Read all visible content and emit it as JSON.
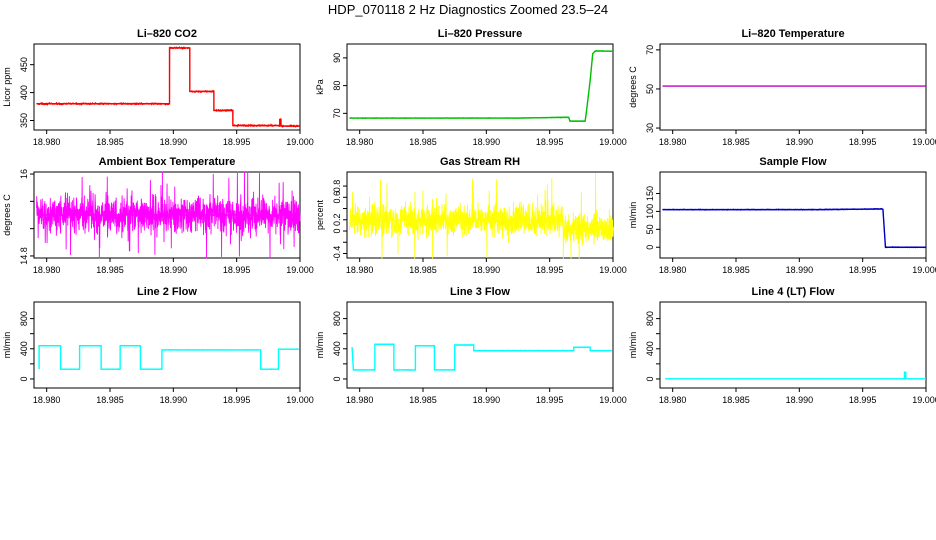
{
  "figure": {
    "title": "HDP_070118  2 Hz Diagnostics Zoomed 23.5–24"
  },
  "chart_data": [
    {
      "type": "line",
      "title": "Li–820 CO2",
      "ylabel": "Licor ppm",
      "color": "#ff0000",
      "xlim": [
        18.979,
        19.0
      ],
      "ylim": [
        333,
        487
      ],
      "xticks": [
        18.98,
        18.985,
        18.99,
        18.995,
        19.0
      ],
      "xtick_labels": [
        "18.980",
        "18.985",
        "18.990",
        "18.995",
        "19.000"
      ],
      "yticks": [
        350,
        400,
        450
      ],
      "series": [
        {
          "x": [
            18.9792,
            18.9897,
            18.9897,
            18.9913,
            18.9913,
            18.9932,
            18.9932,
            18.9947,
            18.9947,
            18.9984,
            18.9984,
            18.9985,
            18.9985,
            19.0
          ],
          "y": [
            380,
            380,
            480,
            480,
            402,
            402,
            368,
            368,
            341,
            341,
            352,
            352,
            340,
            340
          ],
          "noise": 1.5
        }
      ]
    },
    {
      "type": "line",
      "title": "Li–820 Pressure",
      "ylabel": "kPa",
      "color": "#00c000",
      "xlim": [
        18.979,
        19.0
      ],
      "ylim": [
        64,
        95
      ],
      "xticks": [
        18.98,
        18.985,
        18.99,
        18.995,
        19.0
      ],
      "xtick_labels": [
        "18.980",
        "18.985",
        "18.990",
        "18.995",
        "19.000"
      ],
      "yticks": [
        70,
        80,
        90
      ],
      "series": [
        {
          "x": [
            18.9792,
            18.9925,
            18.9965,
            18.9966,
            18.9978,
            18.9979,
            18.9982,
            18.9984,
            18.9986,
            19.0
          ],
          "y": [
            68.3,
            68.3,
            68.6,
            67.2,
            67.2,
            70.5,
            82,
            91.5,
            92.5,
            92.4
          ],
          "noise": 0.12
        }
      ]
    },
    {
      "type": "line",
      "title": "Li–820 Temperature",
      "ylabel": "degrees C",
      "color": "#c000c0",
      "xlim": [
        18.979,
        19.0
      ],
      "ylim": [
        29,
        73
      ],
      "xticks": [
        18.98,
        18.985,
        18.99,
        18.995,
        19.0
      ],
      "xtick_labels": [
        "18.980",
        "18.985",
        "18.990",
        "18.995",
        "19.000"
      ],
      "yticks": [
        30,
        50,
        70
      ],
      "series": [
        {
          "x": [
            18.9792,
            19.0
          ],
          "y": [
            51.5,
            51.5
          ],
          "noise": 0
        }
      ]
    },
    {
      "type": "line",
      "title": "Ambient Box Temperature",
      "ylabel": "degrees C",
      "color": "#ff00ff",
      "xlim": [
        18.979,
        19.0
      ],
      "ylim": [
        14.77,
        16.03
      ],
      "xticks": [
        18.98,
        18.985,
        18.99,
        18.995,
        19.0
      ],
      "xtick_labels": [
        "18.980",
        "18.985",
        "18.990",
        "18.995",
        "19.000"
      ],
      "yticks": [
        14.8,
        15.2,
        15.6,
        16.0
      ],
      "yticks_shown": [
        14.8,
        15.4,
        16.0
      ],
      "series": [
        {
          "x": [
            18.9792,
            19.0
          ],
          "y": [
            15.4,
            15.4
          ],
          "noise": 0.22,
          "spikes": 0.6
        }
      ]
    },
    {
      "type": "line",
      "title": "Gas Stream RH",
      "ylabel": "percent",
      "color": "#ffff00",
      "xlim": [
        18.979,
        19.0
      ],
      "ylim": [
        -0.48,
        1.05
      ],
      "xticks": [
        18.98,
        18.985,
        18.99,
        18.995,
        19.0
      ],
      "xtick_labels": [
        "18.980",
        "18.985",
        "18.990",
        "18.995",
        "19.000"
      ],
      "yticks": [
        -0.4,
        -0.2,
        0.0,
        0.2,
        0.4,
        0.6,
        0.8
      ],
      "yticks_shown": [
        -0.4,
        0.0,
        0.2,
        0.6,
        0.8
      ],
      "series": [
        {
          "x": [
            18.9792,
            18.996,
            18.9961,
            19.0
          ],
          "y": [
            0.2,
            0.2,
            0.05,
            0.05
          ],
          "noise": 0.22,
          "spikes": 0.75
        }
      ]
    },
    {
      "type": "line",
      "title": "Sample Flow",
      "ylabel": "ml/min",
      "color": "#0000c8",
      "xlim": [
        18.979,
        19.0
      ],
      "ylim": [
        -30,
        210
      ],
      "xticks": [
        18.98,
        18.985,
        18.99,
        18.995,
        19.0
      ],
      "xtick_labels": [
        "18.980",
        "18.985",
        "18.990",
        "18.995",
        "19.000"
      ],
      "yticks": [
        0,
        50,
        100,
        150
      ],
      "series": [
        {
          "x": [
            18.9792,
            18.9915,
            18.9965,
            18.9966,
            18.9968,
            19.0
          ],
          "y": [
            105,
            105,
            107,
            106,
            0,
            0
          ],
          "noise": 1.2
        }
      ]
    },
    {
      "type": "line",
      "title": "Line 2 Flow",
      "ylabel": "ml/min",
      "color": "#00ffff",
      "xlim": [
        18.979,
        19.0
      ],
      "ylim": [
        -120,
        1020
      ],
      "xticks": [
        18.98,
        18.985,
        18.99,
        18.995,
        19.0
      ],
      "xtick_labels": [
        "18.980",
        "18.985",
        "18.990",
        "18.995",
        "19.000"
      ],
      "yticks": [
        0,
        200,
        400,
        600,
        800
      ],
      "yticks_shown": [
        0,
        400,
        800
      ],
      "series": [
        {
          "x": [
            18.9794,
            18.9794,
            18.9811,
            18.9811,
            18.9826,
            18.9826,
            18.9843,
            18.9843,
            18.9858,
            18.9858,
            18.9874,
            18.9874,
            18.9891,
            18.9891,
            18.9969,
            18.9969,
            18.9983,
            18.9983,
            18.9999
          ],
          "y": [
            130,
            440,
            440,
            130,
            130,
            440,
            440,
            130,
            130,
            440,
            440,
            130,
            130,
            385,
            385,
            130,
            130,
            395,
            395
          ],
          "noise": 4
        }
      ]
    },
    {
      "type": "line",
      "title": "Line 3 Flow",
      "ylabel": "ml/min",
      "color": "#00ffff",
      "xlim": [
        18.979,
        19.0
      ],
      "ylim": [
        -120,
        1020
      ],
      "xticks": [
        18.98,
        18.985,
        18.99,
        18.995,
        19.0
      ],
      "xtick_labels": [
        "18.980",
        "18.985",
        "18.990",
        "18.995",
        "19.000"
      ],
      "yticks": [
        0,
        200,
        400,
        600,
        800
      ],
      "yticks_shown": [
        0,
        400,
        800
      ],
      "series": [
        {
          "x": [
            18.9794,
            18.9794,
            18.9795,
            18.9795,
            18.9812,
            18.9812,
            18.9827,
            18.9827,
            18.9844,
            18.9844,
            18.9859,
            18.9859,
            18.9875,
            18.9875,
            18.989,
            18.989,
            18.9969,
            18.9969,
            18.9982,
            18.9982,
            18.9999
          ],
          "y": [
            420,
            420,
            130,
            120,
            120,
            460,
            460,
            120,
            120,
            440,
            440,
            120,
            120,
            450,
            450,
            375,
            375,
            420,
            420,
            375,
            375
          ],
          "noise": 5
        }
      ]
    },
    {
      "type": "line",
      "title": "Line 4 (LT) Flow",
      "ylabel": "ml/min",
      "color": "#00ffff",
      "xlim": [
        18.979,
        19.0
      ],
      "ylim": [
        -120,
        1020
      ],
      "xticks": [
        18.98,
        18.985,
        18.99,
        18.995,
        19.0
      ],
      "xtick_labels": [
        "18.980",
        "18.985",
        "18.990",
        "18.995",
        "19.000"
      ],
      "yticks": [
        0,
        200,
        400,
        600,
        800
      ],
      "yticks_shown": [
        0,
        400,
        800
      ],
      "series": [
        {
          "x": [
            18.9794,
            18.9983,
            18.9983,
            18.9984,
            18.9984,
            19.0
          ],
          "y": [
            2,
            2,
            90,
            90,
            2,
            2
          ],
          "noise": 0.5
        }
      ]
    }
  ]
}
